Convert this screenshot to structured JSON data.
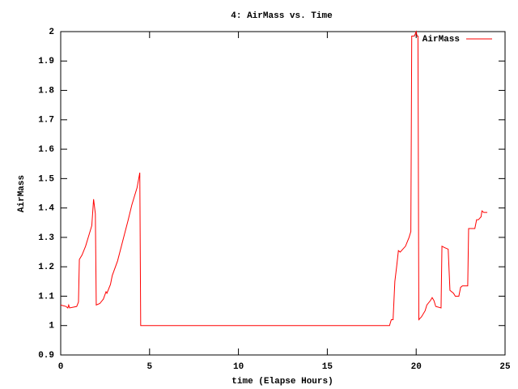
{
  "chart_data": {
    "type": "line",
    "title": "4: AirMass vs. Time",
    "x_label": "time (Elapse Hours)",
    "y_label": "AirMass",
    "x": [
      0,
      0.3,
      0.4,
      0.45,
      0.5,
      0.9,
      1.0,
      1.05,
      1.2,
      1.4,
      1.6,
      1.75,
      1.85,
      1.95,
      2.0,
      2.2,
      2.4,
      2.55,
      2.6,
      2.8,
      2.9,
      3.2,
      3.5,
      3.8,
      4.0,
      4.3,
      4.45,
      4.5,
      18.5,
      18.6,
      18.7,
      18.8,
      18.9,
      19.0,
      19.1,
      19.4,
      19.6,
      19.7,
      19.75,
      19.9,
      20.0,
      20.05,
      20.1,
      20.15,
      20.3,
      20.5,
      20.6,
      20.8,
      20.9,
      21.0,
      21.1,
      21.4,
      21.45,
      21.6,
      21.8,
      21.9,
      22.1,
      22.2,
      22.4,
      22.5,
      22.6,
      22.9,
      22.95,
      23.3,
      23.4,
      23.5,
      23.65,
      23.7,
      23.8,
      24.0
    ],
    "series": [
      {
        "name": "AirMass",
        "color": "#ff0000",
        "values": [
          1.07,
          1.065,
          1.06,
          1.07,
          1.06,
          1.065,
          1.08,
          1.225,
          1.24,
          1.27,
          1.31,
          1.34,
          1.43,
          1.38,
          1.07,
          1.075,
          1.09,
          1.115,
          1.11,
          1.14,
          1.17,
          1.22,
          1.29,
          1.36,
          1.41,
          1.47,
          1.52,
          1.0,
          1.0,
          1.02,
          1.02,
          1.15,
          1.2,
          1.255,
          1.25,
          1.27,
          1.3,
          1.32,
          1.985,
          1.985,
          2.0,
          1.985,
          1.985,
          1.02,
          1.03,
          1.05,
          1.07,
          1.085,
          1.095,
          1.085,
          1.065,
          1.06,
          1.27,
          1.265,
          1.26,
          1.12,
          1.11,
          1.1,
          1.1,
          1.13,
          1.135,
          1.135,
          1.33,
          1.33,
          1.36,
          1.36,
          1.37,
          1.39,
          1.385,
          1.385
        ]
      }
    ],
    "xlim": [
      0,
      25
    ],
    "xticks": [
      0,
      5,
      10,
      15,
      20,
      25
    ],
    "ylim": [
      0.9,
      2
    ],
    "yticks": [
      0.9,
      1,
      1.1,
      1.2,
      1.3,
      1.4,
      1.5,
      1.6,
      1.7,
      1.8,
      1.9,
      2
    ],
    "legend": "upper right",
    "grid": false
  }
}
